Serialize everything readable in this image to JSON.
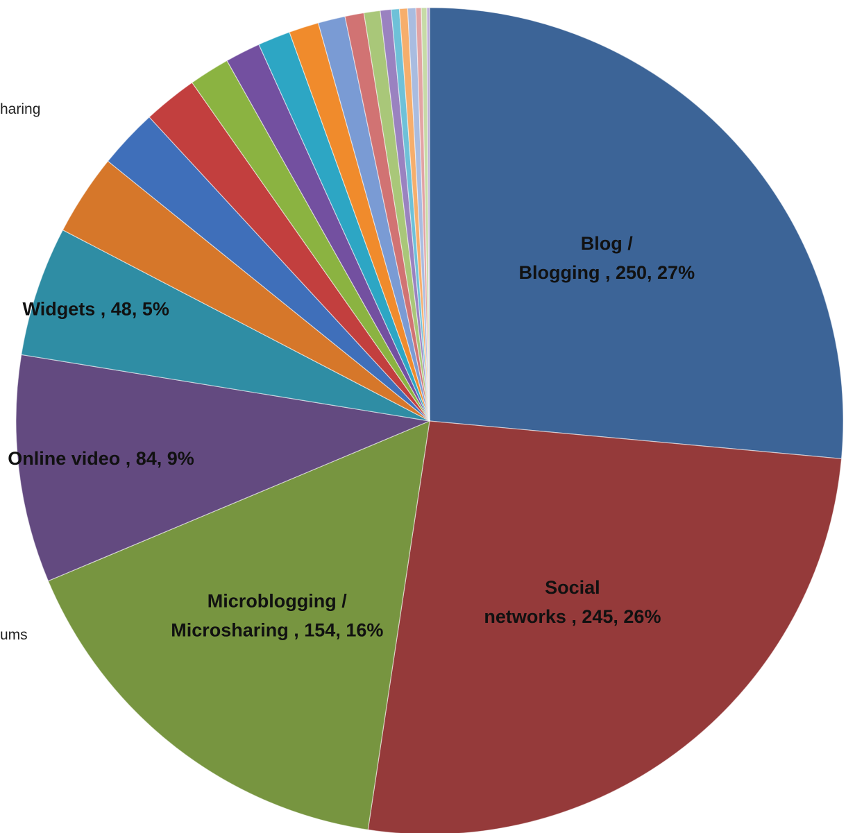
{
  "chart_data": {
    "type": "pie",
    "slices": [
      {
        "label_lines": [
          "Blog /",
          "Blogging , 250, 27%"
        ],
        "value": 250,
        "percent": 27,
        "color": "#3C6497"
      },
      {
        "label_lines": [
          "Social",
          "networks , 245, 26%"
        ],
        "value": 245,
        "percent": 26,
        "color": "#953A3A"
      },
      {
        "label_lines": [
          "Microblogging /",
          "Microsharing , 154, 16%"
        ],
        "value": 154,
        "percent": 16,
        "color": "#779540"
      },
      {
        "label_lines": [
          "Online video , 84, 9%"
        ],
        "value": 84,
        "percent": 9,
        "color": "#634A80"
      },
      {
        "label_lines": [
          "Widgets , 48, 5%"
        ],
        "value": 48,
        "percent": 5,
        "color": "#2F8DA4"
      },
      {
        "label_lines": [],
        "value": 30,
        "color": "#D6772A"
      },
      {
        "label_lines": [],
        "value": 22,
        "color": "#3F6FBA"
      },
      {
        "label_lines": [],
        "value": 20,
        "color": "#C23F3E"
      },
      {
        "label_lines": [],
        "value": 15,
        "color": "#8BB341"
      },
      {
        "label_lines": [],
        "value": 13,
        "color": "#7350A0"
      },
      {
        "label_lines": [],
        "value": 12,
        "color": "#2DA6C4"
      },
      {
        "label_lines": [],
        "value": 11,
        "color": "#F08B2C"
      },
      {
        "label_lines": [],
        "value": 10,
        "color": "#7A9BD4"
      },
      {
        "label_lines": [],
        "value": 7,
        "color": "#D17373"
      },
      {
        "label_lines": [],
        "value": 6,
        "color": "#A9C779"
      },
      {
        "label_lines": [],
        "value": 4,
        "color": "#9A82C0"
      },
      {
        "label_lines": [],
        "value": 3,
        "color": "#6EC1D8"
      },
      {
        "label_lines": [],
        "value": 3,
        "color": "#F6AE6C"
      },
      {
        "label_lines": [],
        "value": 3,
        "color": "#A9BCE0"
      },
      {
        "label_lines": [],
        "value": 2,
        "color": "#E2A4A4"
      },
      {
        "label_lines": [],
        "value": 2,
        "color": "#C7DBA7"
      },
      {
        "label_lines": [],
        "value": 1,
        "color": "#BCAED8"
      }
    ],
    "outside_labels": [
      "haring",
      "ums"
    ]
  }
}
